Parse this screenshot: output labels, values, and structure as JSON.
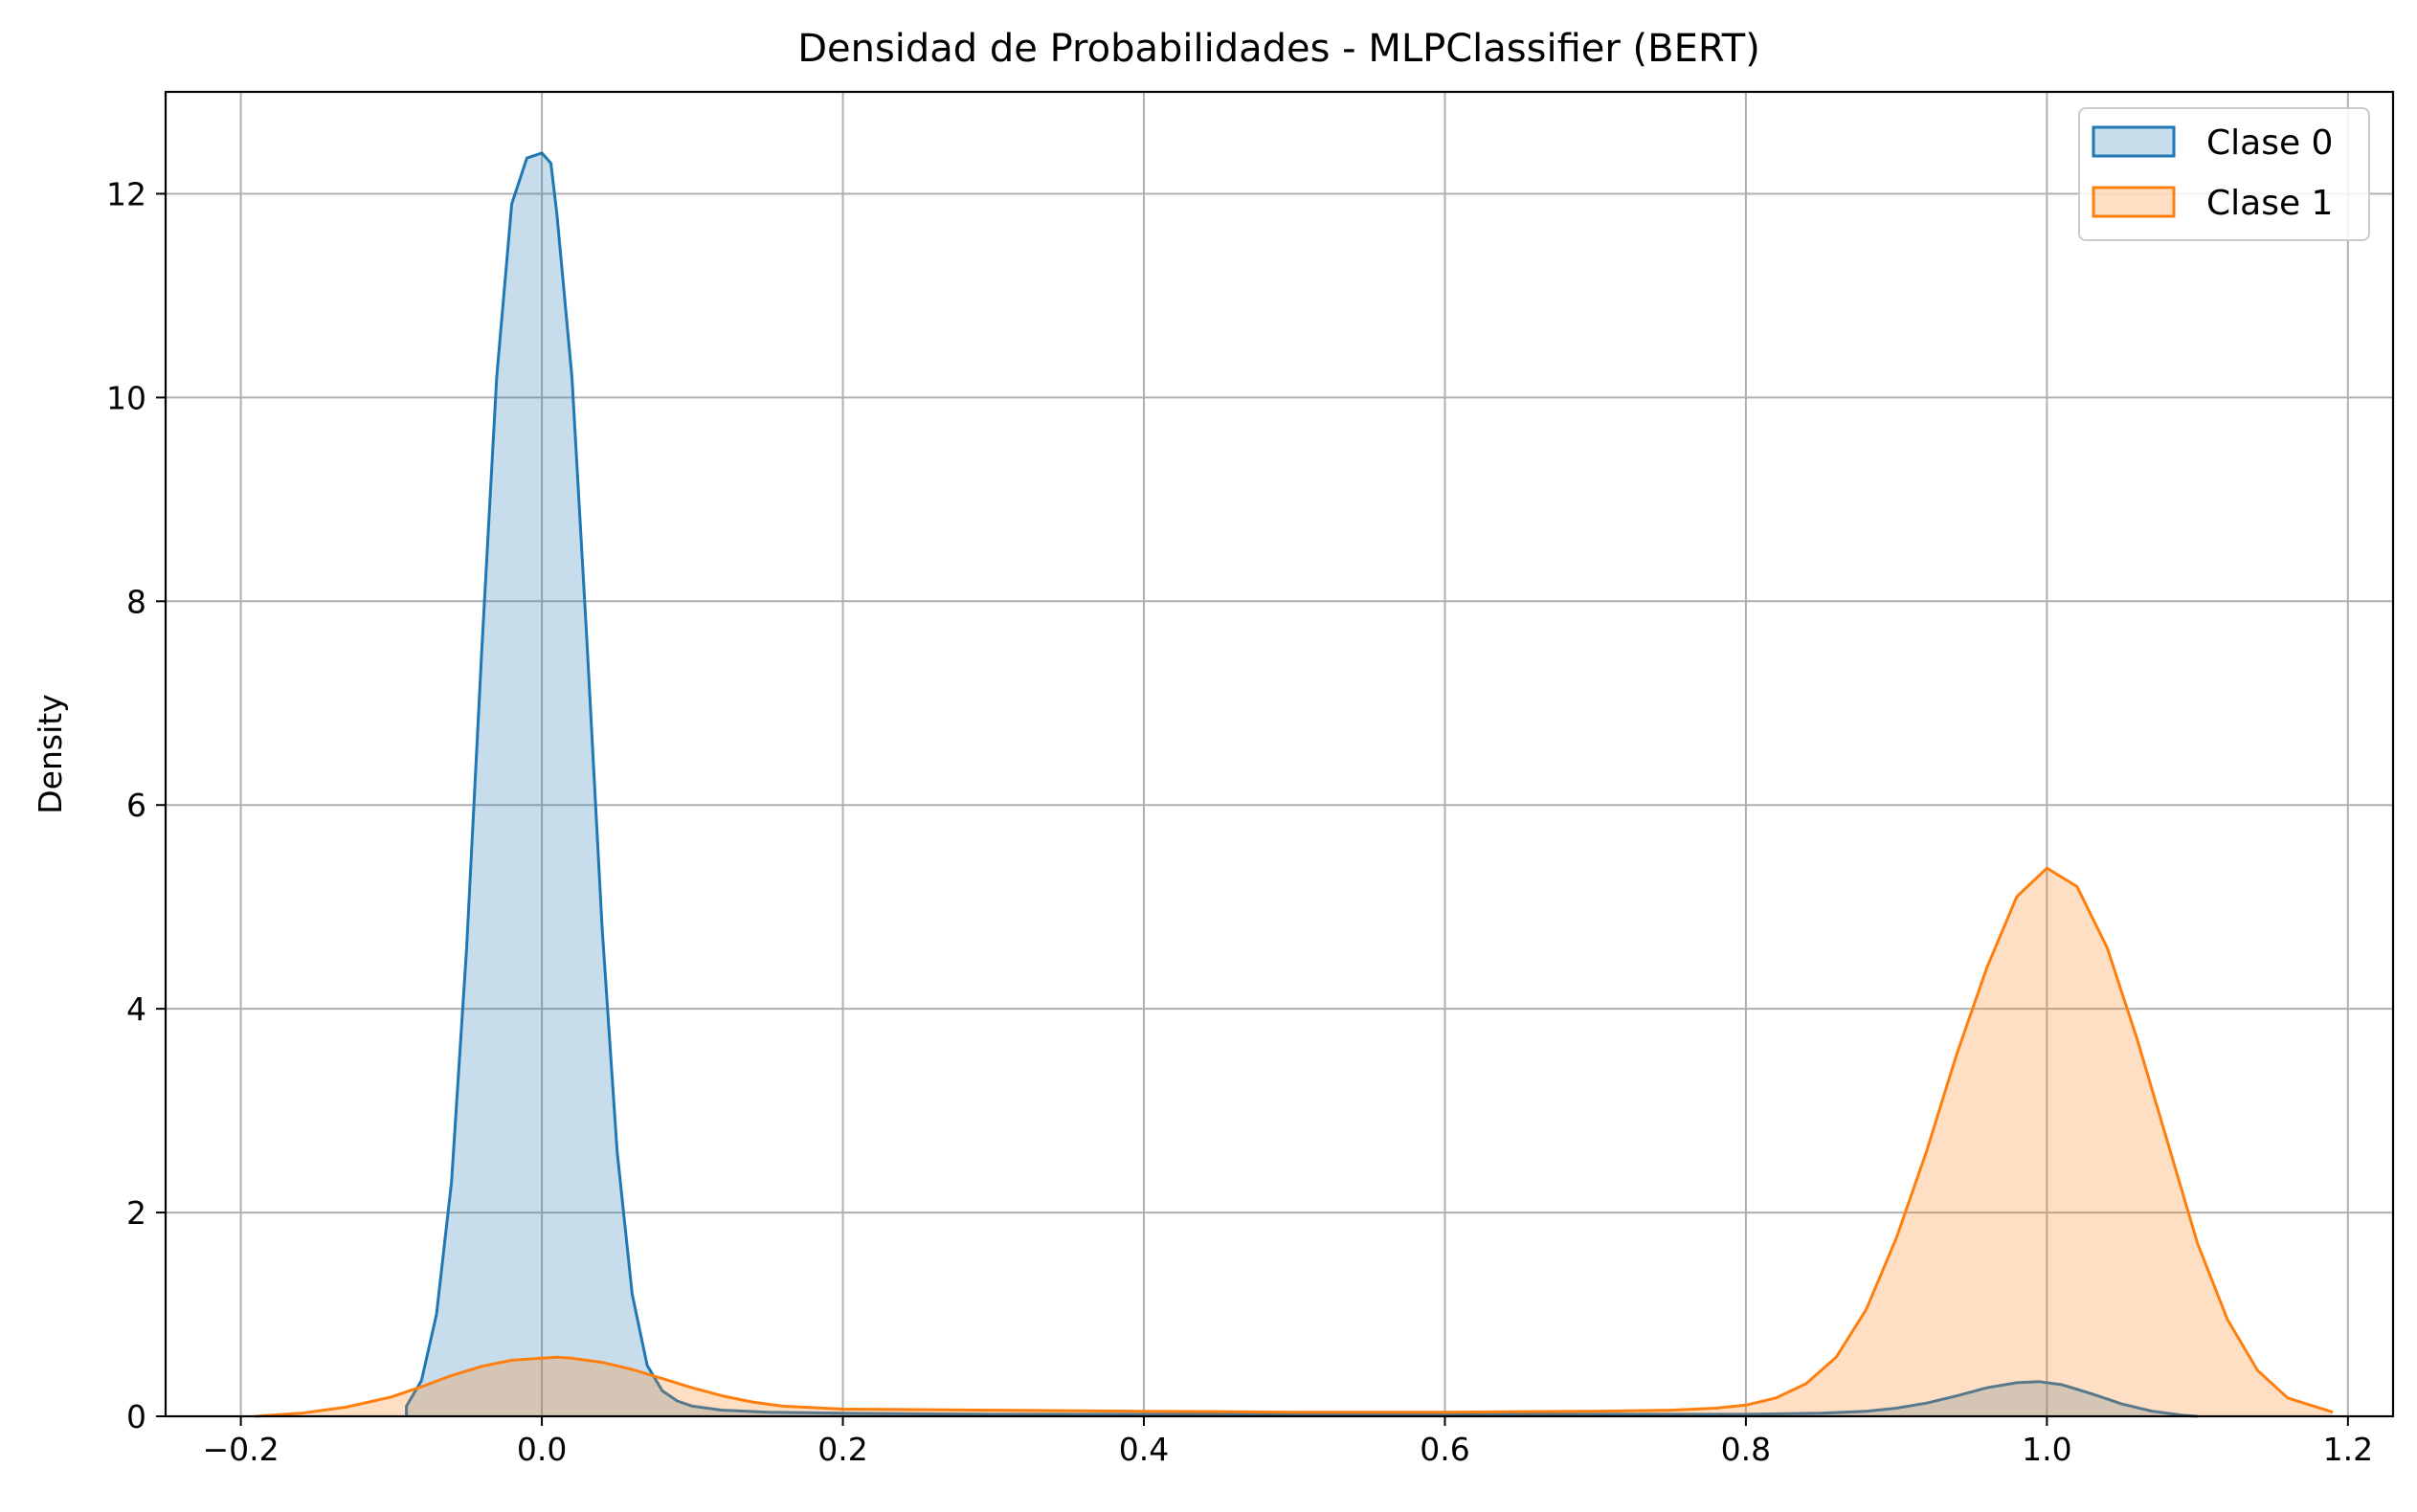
{
  "chart_data": {
    "type": "area",
    "title": "Densidad de Probabilidades - MLPClassifier (BERT)",
    "xlabel": "",
    "ylabel": "Density",
    "xlim": [
      -0.25,
      1.23
    ],
    "ylim": [
      0,
      13
    ],
    "xticks": [
      -0.2,
      0.0,
      0.2,
      0.4,
      0.6,
      0.8,
      1.0,
      1.2
    ],
    "xtick_labels": [
      "−0.2",
      "0.0",
      "0.2",
      "0.4",
      "0.6",
      "0.8",
      "1.0",
      "1.2"
    ],
    "yticks": [
      0,
      2,
      4,
      6,
      8,
      10,
      12
    ],
    "ytick_labels": [
      "0",
      "2",
      "4",
      "6",
      "8",
      "10",
      "12"
    ],
    "grid": true,
    "legend_position": "top-right",
    "series": [
      {
        "name": "Clase 0",
        "line_color": "#1f77b4",
        "fill_color": "#1f77b4",
        "fill_opacity": 0.25,
        "x": [
          -0.09,
          -0.09,
          -0.08,
          -0.07,
          -0.06,
          -0.05,
          -0.04,
          -0.03,
          -0.02,
          -0.01,
          0.0,
          0.006,
          0.01,
          0.02,
          0.03,
          0.04,
          0.05,
          0.06,
          0.07,
          0.08,
          0.09,
          0.1,
          0.12,
          0.15,
          0.2,
          0.3,
          0.4,
          0.5,
          0.6,
          0.7,
          0.8,
          0.85,
          0.88,
          0.9,
          0.92,
          0.94,
          0.96,
          0.98,
          0.995,
          1.01,
          1.03,
          1.05,
          1.07,
          1.09,
          1.1
        ],
        "y": [
          0.0,
          0.1,
          0.35,
          1.0,
          2.3,
          4.6,
          7.5,
          10.2,
          11.9,
          12.35,
          12.4,
          12.3,
          11.8,
          10.2,
          7.6,
          4.8,
          2.6,
          1.2,
          0.5,
          0.25,
          0.15,
          0.1,
          0.06,
          0.04,
          0.03,
          0.02,
          0.02,
          0.02,
          0.02,
          0.02,
          0.02,
          0.03,
          0.05,
          0.08,
          0.13,
          0.2,
          0.28,
          0.33,
          0.34,
          0.31,
          0.22,
          0.12,
          0.05,
          0.01,
          0.0
        ]
      },
      {
        "name": "Clase 1",
        "line_color": "#ff7f0e",
        "fill_color": "#ff7f0e",
        "fill_opacity": 0.25,
        "x": [
          -0.19,
          -0.16,
          -0.13,
          -0.1,
          -0.08,
          -0.06,
          -0.04,
          -0.02,
          0.0,
          0.01,
          0.02,
          0.04,
          0.06,
          0.08,
          0.1,
          0.12,
          0.14,
          0.16,
          0.2,
          0.3,
          0.4,
          0.5,
          0.6,
          0.7,
          0.75,
          0.78,
          0.8,
          0.82,
          0.84,
          0.86,
          0.88,
          0.9,
          0.92,
          0.94,
          0.96,
          0.98,
          1.0,
          1.02,
          1.04,
          1.06,
          1.08,
          1.1,
          1.12,
          1.14,
          1.16,
          1.19
        ],
        "y": [
          0.0,
          0.03,
          0.09,
          0.19,
          0.29,
          0.4,
          0.49,
          0.55,
          0.57,
          0.58,
          0.57,
          0.53,
          0.46,
          0.37,
          0.28,
          0.2,
          0.14,
          0.1,
          0.07,
          0.06,
          0.05,
          0.04,
          0.04,
          0.05,
          0.06,
          0.08,
          0.11,
          0.18,
          0.32,
          0.58,
          1.05,
          1.75,
          2.6,
          3.55,
          4.4,
          5.1,
          5.38,
          5.2,
          4.6,
          3.7,
          2.7,
          1.7,
          0.95,
          0.45,
          0.18,
          0.04
        ]
      }
    ]
  }
}
